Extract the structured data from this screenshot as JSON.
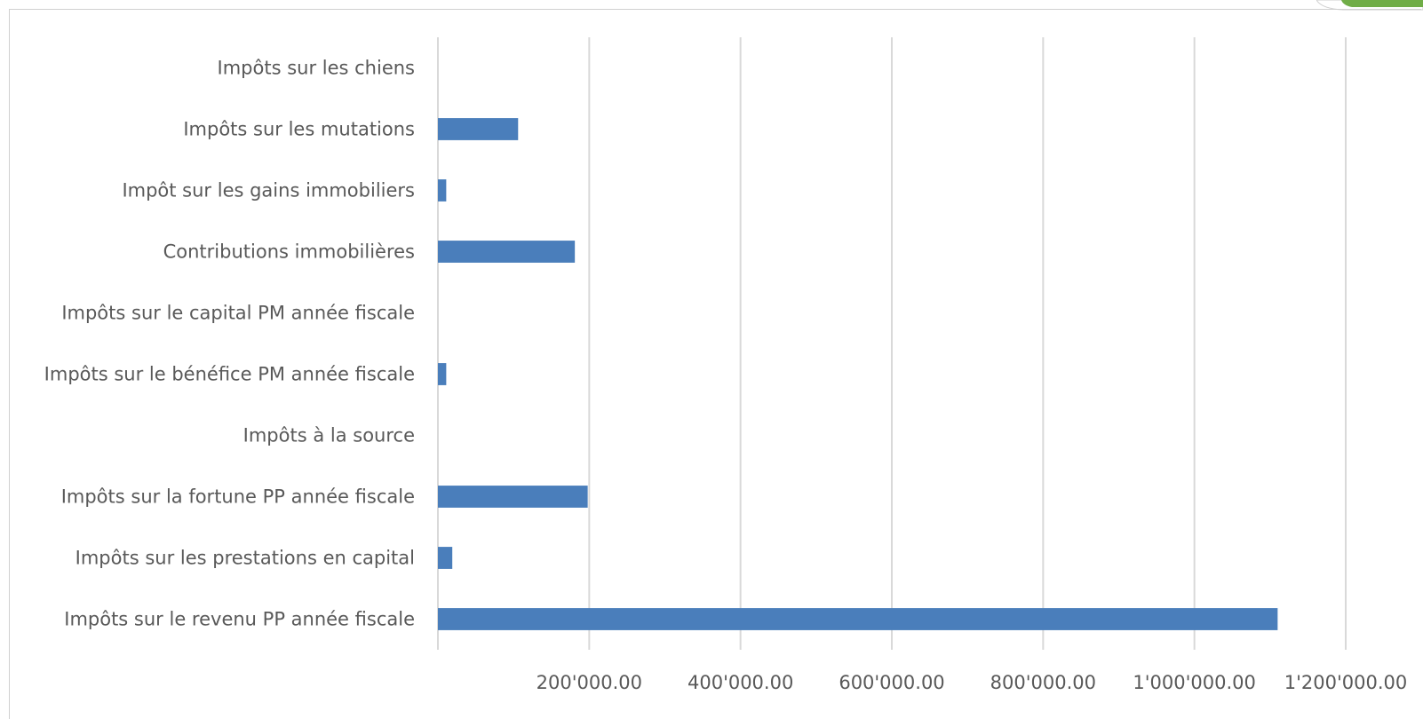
{
  "chart_data": {
    "type": "bar",
    "orientation": "horizontal",
    "title": "",
    "xlabel": "",
    "ylabel": "",
    "categories": [
      "Impôts sur le revenu PP année fiscale",
      "Impôts sur les prestations en capital",
      "Impôts sur la fortune PP année fiscale",
      "Impôts à la source",
      "Impôts sur le bénéfice PM année fiscale",
      "Impôts sur le capital PM année fiscale",
      "Contributions immobilières",
      "Impôt sur les gains immobiliers",
      "Impôts sur les mutations",
      "Impôts sur les chiens"
    ],
    "values": [
      1110000,
      19000,
      198000,
      0,
      11000,
      0,
      181000,
      11000,
      106000,
      0
    ],
    "xlim": [
      0,
      1200000
    ],
    "xticks": [
      200000,
      400000,
      600000,
      800000,
      1000000,
      1200000
    ],
    "xtick_labels": [
      "200'000.00",
      "400'000.00",
      "600'000.00",
      "800'000.00",
      "1'000'000.00",
      "1'200'000.00"
    ],
    "grid": true,
    "legend": "none",
    "bar_color": "#4a7ebb",
    "grid_color": "#d9d9d9",
    "label_color": "#595959",
    "accent_corner_color": "#70ad47"
  }
}
